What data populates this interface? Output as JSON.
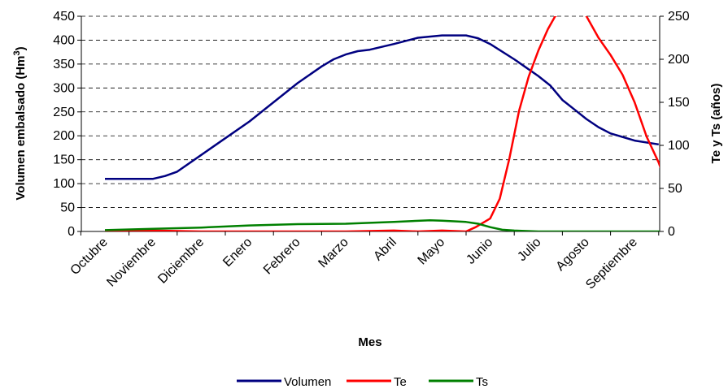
{
  "chart_data": {
    "type": "line",
    "xlabel": "Mes",
    "ylabel_left": "Volumen embalsado (Hm",
    "ylabel_left_sup": "3",
    "ylabel_left_end": ")",
    "ylabel_right": "Te y Ts (años)",
    "categories": [
      "Octubre",
      "Noviembre",
      "Diciembre",
      "Enero",
      "Febrero",
      "Marzo",
      "Abril",
      "Mayo",
      "Junio",
      "Julio",
      "Agosto",
      "Septiembre"
    ],
    "ylim_left": [
      0,
      450
    ],
    "yticks_left": [
      0,
      50,
      100,
      150,
      200,
      250,
      300,
      350,
      400,
      450
    ],
    "ylim_right": [
      0,
      250
    ],
    "yticks_right": [
      0,
      50,
      100,
      150,
      200,
      250
    ],
    "grid": true,
    "legend": "bottom",
    "series": [
      {
        "name": "Volumen",
        "axis": "left",
        "color": "#000080",
        "points": [
          [
            0,
            110
          ],
          [
            0.5,
            110
          ],
          [
            1,
            110
          ],
          [
            1.25,
            116
          ],
          [
            1.5,
            125
          ],
          [
            2,
            160
          ],
          [
            2.5,
            195
          ],
          [
            3,
            230
          ],
          [
            3.5,
            270
          ],
          [
            4,
            310
          ],
          [
            4.5,
            345
          ],
          [
            4.75,
            360
          ],
          [
            5,
            370
          ],
          [
            5.25,
            377
          ],
          [
            5.5,
            380
          ],
          [
            6,
            392
          ],
          [
            6.5,
            405
          ],
          [
            7,
            410
          ],
          [
            7.5,
            410
          ],
          [
            7.75,
            404
          ],
          [
            8,
            392
          ],
          [
            8.5,
            360
          ],
          [
            9,
            325
          ],
          [
            9.25,
            305
          ],
          [
            9.5,
            275
          ],
          [
            9.75,
            255
          ],
          [
            10,
            235
          ],
          [
            10.25,
            218
          ],
          [
            10.5,
            205
          ],
          [
            11,
            190
          ],
          [
            11.5,
            182
          ]
        ]
      },
      {
        "name": "Te",
        "axis": "right",
        "color": "#ff0000",
        "points": [
          [
            0,
            0
          ],
          [
            1,
            1
          ],
          [
            2,
            0
          ],
          [
            3,
            0
          ],
          [
            4,
            0
          ],
          [
            5,
            0
          ],
          [
            6,
            1
          ],
          [
            6.5,
            0
          ],
          [
            7,
            1
          ],
          [
            7.5,
            0
          ],
          [
            7.7,
            5
          ],
          [
            8,
            15
          ],
          [
            8.2,
            38
          ],
          [
            8.4,
            85
          ],
          [
            8.6,
            140
          ],
          [
            8.8,
            180
          ],
          [
            9,
            210
          ],
          [
            9.2,
            235
          ],
          [
            9.35,
            250
          ],
          [
            9.8,
            262
          ],
          [
            10,
            250
          ],
          [
            10.25,
            225
          ],
          [
            10.5,
            205
          ],
          [
            10.75,
            182
          ],
          [
            11,
            150
          ],
          [
            11.25,
            110
          ],
          [
            11.5,
            80
          ],
          [
            11.75,
            40
          ],
          [
            11.85,
            30
          ]
        ]
      },
      {
        "name": "Ts",
        "axis": "right",
        "color": "#008000",
        "points": [
          [
            0,
            1.5
          ],
          [
            1,
            3
          ],
          [
            2,
            4.5
          ],
          [
            3,
            7
          ],
          [
            4,
            8.5
          ],
          [
            5,
            9
          ],
          [
            6,
            11
          ],
          [
            6.75,
            13
          ],
          [
            7,
            12.5
          ],
          [
            7.5,
            11
          ],
          [
            7.75,
            9
          ],
          [
            8,
            5
          ],
          [
            8.25,
            2
          ],
          [
            8.5,
            1
          ],
          [
            9,
            0
          ],
          [
            10,
            0
          ],
          [
            11,
            0
          ],
          [
            11.85,
            0
          ]
        ]
      }
    ]
  }
}
